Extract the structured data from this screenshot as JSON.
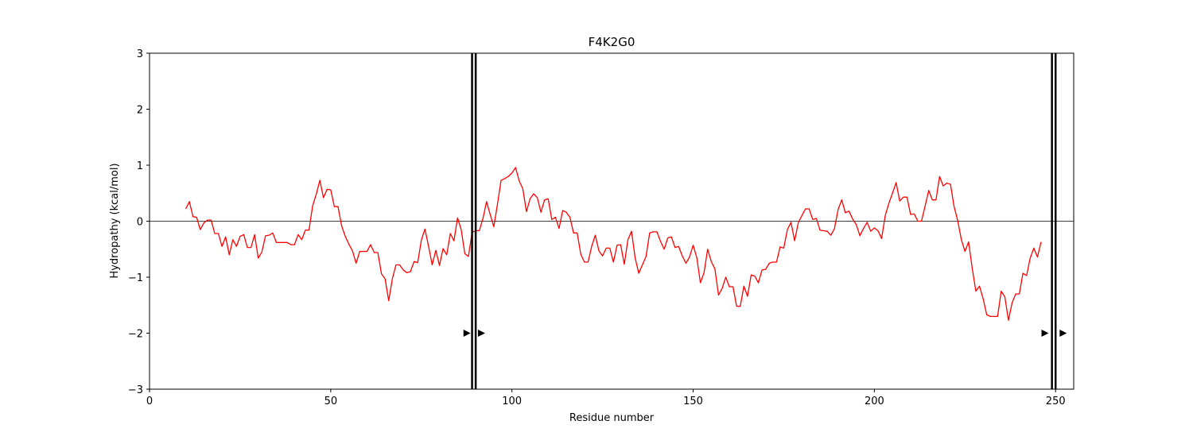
{
  "chart_data": {
    "type": "line",
    "title": "F4K2G0",
    "xlabel": "Residue number",
    "ylabel": "Hydropathy (kcal/mol)",
    "xlim": [
      0,
      255
    ],
    "ylim": [
      -3,
      3
    ],
    "xticks": [
      0,
      50,
      100,
      150,
      200,
      250
    ],
    "yticks": [
      -3,
      -2,
      -1,
      0,
      1,
      2,
      3
    ],
    "grid": false,
    "zero_line": true,
    "colors": {
      "series": "#ff0000",
      "axes": "#000000",
      "markers": "#000000"
    },
    "series": [
      {
        "x": [
          10,
          11,
          12,
          13,
          14,
          15,
          16,
          17,
          18,
          19,
          20,
          21,
          22,
          23,
          24,
          25,
          26,
          27,
          28,
          29,
          30,
          31,
          32,
          33,
          34,
          35,
          36,
          37,
          38,
          39,
          40,
          41,
          42,
          43,
          44,
          45,
          46,
          47,
          48,
          49,
          50,
          51,
          52,
          53,
          54,
          55,
          56,
          57,
          58,
          59,
          60,
          61,
          62,
          63,
          64,
          65,
          66,
          67,
          68,
          69,
          70,
          71,
          72,
          73,
          74,
          75,
          76,
          77,
          78,
          79,
          80,
          81,
          82,
          83,
          84,
          85,
          86,
          87,
          88,
          89,
          90,
          91,
          92,
          93,
          94,
          95,
          96,
          97,
          98,
          99,
          100,
          101,
          102,
          103,
          104,
          105,
          106,
          107,
          108,
          109,
          110,
          111,
          112,
          113,
          114,
          115,
          116,
          117,
          118,
          119,
          120,
          121,
          122,
          123,
          124,
          125,
          126,
          127,
          128,
          129,
          130,
          131,
          132,
          133,
          134,
          135,
          136,
          137,
          138,
          139,
          140,
          141,
          142,
          143,
          144,
          145,
          146,
          147,
          148,
          149,
          150,
          151,
          152,
          153,
          154,
          155,
          156,
          157,
          158,
          159,
          160,
          161,
          162,
          163,
          164,
          165,
          166,
          167,
          168,
          169,
          170,
          171,
          172,
          173,
          174,
          175,
          176,
          177,
          178,
          179,
          180,
          181,
          182,
          183,
          184,
          185,
          186,
          187,
          188,
          189,
          190,
          191,
          192,
          193,
          194,
          195,
          196,
          197,
          198,
          199,
          200,
          201,
          202,
          203,
          204,
          205,
          206,
          207,
          208,
          209,
          210,
          211,
          212,
          213,
          214,
          215,
          216,
          217,
          218,
          219,
          220,
          221,
          222,
          223,
          224,
          225,
          226,
          227,
          228,
          229,
          230,
          231,
          232,
          233,
          234,
          235,
          236,
          237,
          238,
          239,
          240,
          241,
          242,
          243,
          244,
          245,
          246
        ],
        "y": [
          0.22,
          0.35,
          0.08,
          0.07,
          -0.15,
          -0.03,
          0.02,
          0.02,
          -0.22,
          -0.22,
          -0.45,
          -0.28,
          -0.6,
          -0.33,
          -0.45,
          -0.27,
          -0.24,
          -0.47,
          -0.47,
          -0.24,
          -0.66,
          -0.55,
          -0.26,
          -0.25,
          -0.21,
          -0.38,
          -0.38,
          -0.38,
          -0.38,
          -0.42,
          -0.42,
          -0.24,
          -0.33,
          -0.16,
          -0.16,
          0.27,
          0.48,
          0.73,
          0.42,
          0.57,
          0.56,
          0.26,
          0.26,
          -0.08,
          -0.27,
          -0.41,
          -0.53,
          -0.75,
          -0.54,
          -0.54,
          -0.54,
          -0.42,
          -0.56,
          -0.56,
          -0.94,
          -1.03,
          -1.42,
          -1.03,
          -0.78,
          -0.78,
          -0.87,
          -0.92,
          -0.9,
          -0.72,
          -0.74,
          -0.34,
          -0.14,
          -0.45,
          -0.78,
          -0.52,
          -0.79,
          -0.49,
          -0.6,
          -0.22,
          -0.35,
          0.06,
          -0.15,
          -0.58,
          -0.63,
          -0.2,
          -0.17,
          -0.17,
          0.05,
          0.35,
          0.12,
          -0.1,
          0.3,
          0.73,
          0.76,
          0.8,
          0.86,
          0.96,
          0.72,
          0.58,
          0.17,
          0.4,
          0.49,
          0.42,
          0.16,
          0.38,
          0.4,
          0.03,
          0.07,
          -0.13,
          0.19,
          0.16,
          0.07,
          -0.21,
          -0.21,
          -0.59,
          -0.73,
          -0.73,
          -0.45,
          -0.25,
          -0.53,
          -0.62,
          -0.48,
          -0.48,
          -0.73,
          -0.43,
          -0.42,
          -0.77,
          -0.33,
          -0.18,
          -0.66,
          -0.93,
          -0.78,
          -0.63,
          -0.21,
          -0.19,
          -0.19,
          -0.36,
          -0.5,
          -0.3,
          -0.28,
          -0.47,
          -0.45,
          -0.62,
          -0.75,
          -0.64,
          -0.43,
          -0.65,
          -1.1,
          -0.92,
          -0.5,
          -0.72,
          -0.85,
          -1.32,
          -1.2,
          -1.0,
          -1.17,
          -1.17,
          -1.52,
          -1.52,
          -1.16,
          -1.34,
          -0.96,
          -0.98,
          -1.1,
          -0.87,
          -0.86,
          -0.75,
          -0.73,
          -0.73,
          -0.46,
          -0.48,
          -0.15,
          -0.02,
          -0.35,
          -0.03,
          0.1,
          0.22,
          0.22,
          0.03,
          0.05,
          -0.16,
          -0.17,
          -0.18,
          -0.25,
          -0.13,
          0.21,
          0.38,
          0.15,
          0.18,
          0.04,
          -0.06,
          -0.26,
          -0.13,
          -0.02,
          -0.18,
          -0.12,
          -0.17,
          -0.31,
          0.1,
          0.32,
          0.5,
          0.69,
          0.36,
          0.43,
          0.43,
          0.12,
          0.13,
          0.0,
          0.0,
          0.27,
          0.55,
          0.38,
          0.38,
          0.8,
          0.63,
          0.68,
          0.66,
          0.26,
          0.01,
          -0.33,
          -0.54,
          -0.37,
          -0.84,
          -1.25,
          -1.16,
          -1.38,
          -1.67,
          -1.7,
          -1.7,
          -1.7,
          -1.25,
          -1.35,
          -1.77,
          -1.46,
          -1.3,
          -1.3,
          -0.93,
          -0.97,
          -0.66,
          -0.48,
          -0.64,
          -0.37
        ]
      }
    ],
    "vertical_lines": [
      89,
      90,
      249,
      250
    ],
    "markers": [
      {
        "x": 87.5,
        "y": -2,
        "shape": "triangle-right"
      },
      {
        "x": 91.5,
        "y": -2,
        "shape": "triangle-right"
      },
      {
        "x": 247,
        "y": -2,
        "shape": "triangle-right"
      },
      {
        "x": 252,
        "y": -2,
        "shape": "triangle-right"
      }
    ]
  }
}
